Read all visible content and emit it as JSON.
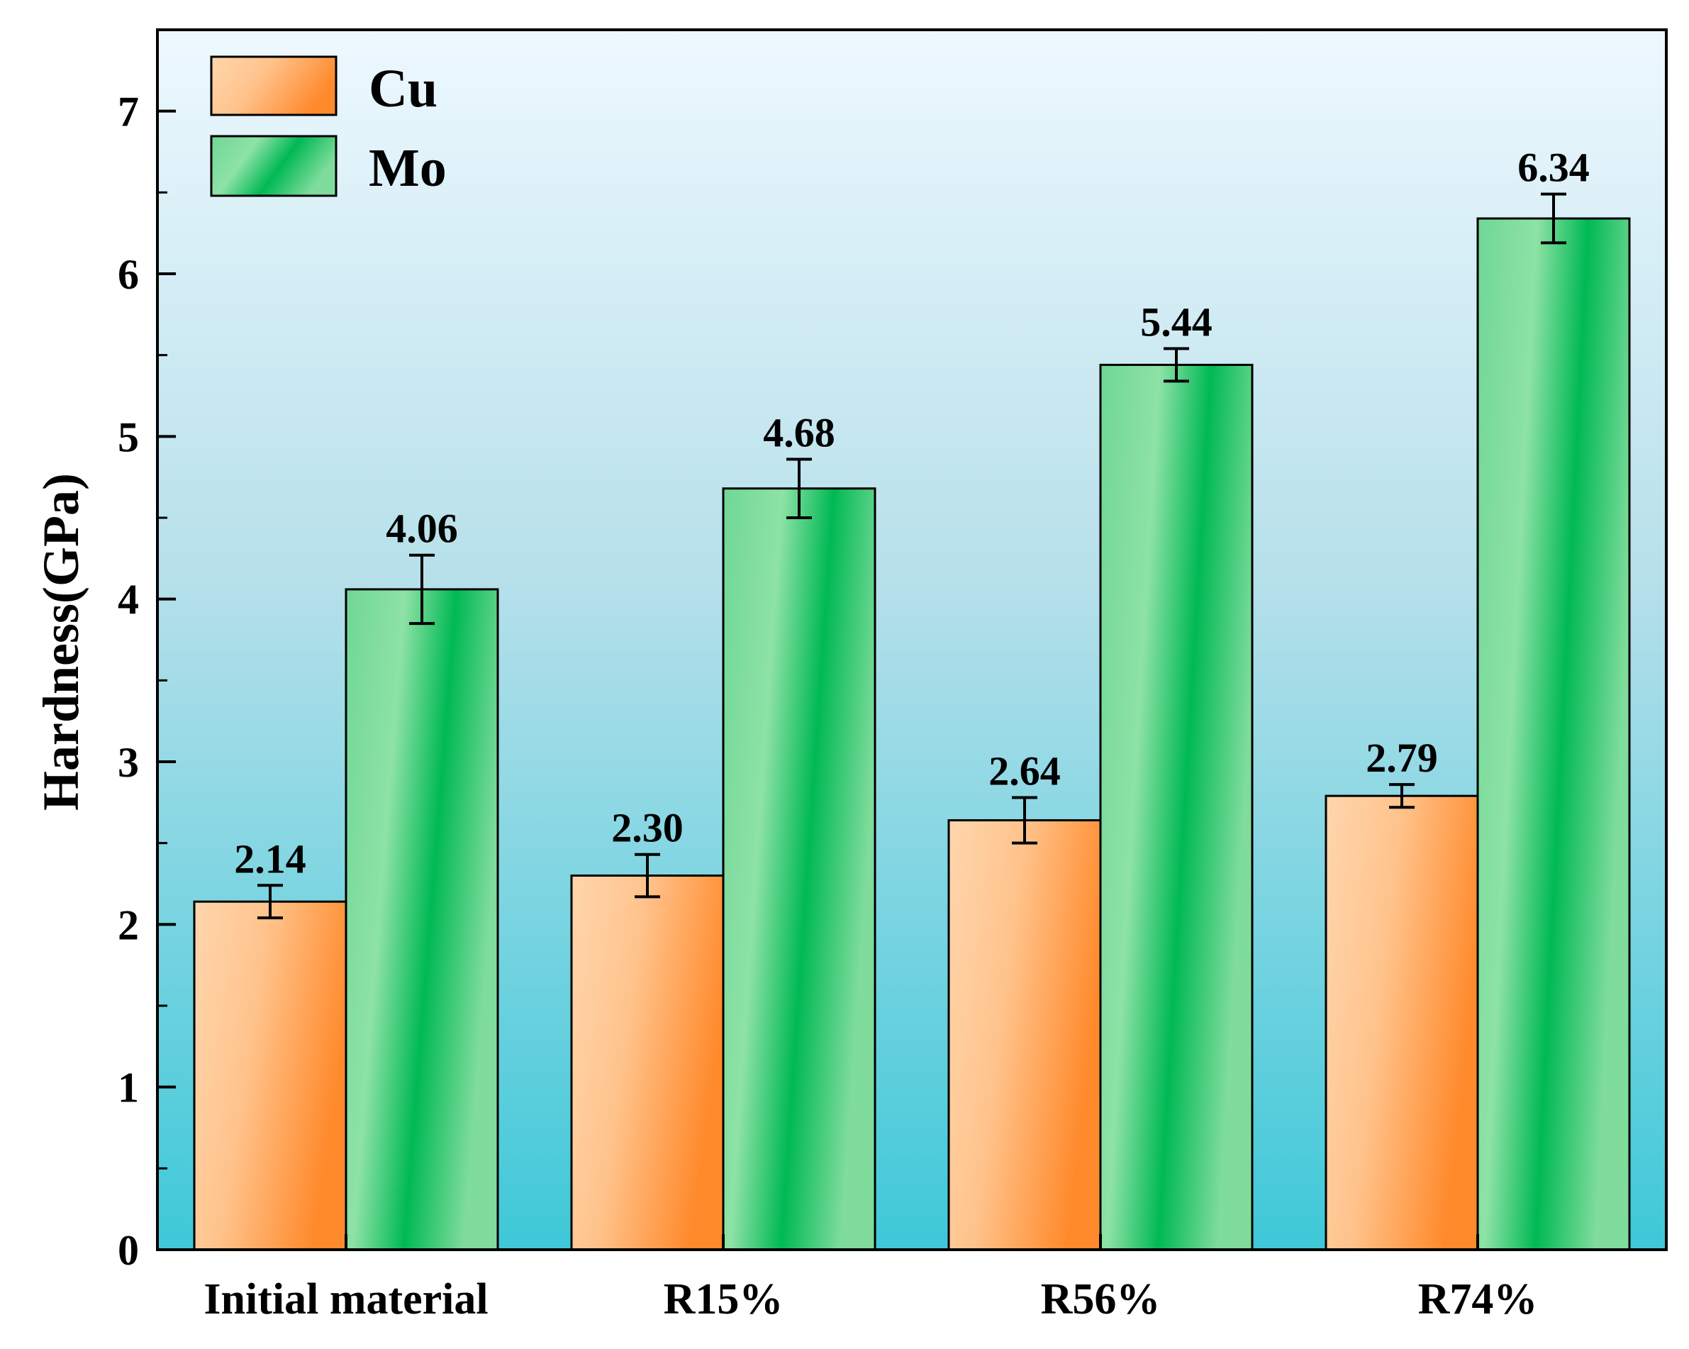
{
  "chart_data": {
    "type": "bar",
    "title": "",
    "xlabel": "",
    "ylabel": "Hardness(GPa)",
    "categories": [
      "Initial material",
      "R15%",
      "R56%",
      "R74%"
    ],
    "series": [
      {
        "name": "Cu",
        "color_light": "#ffd0a0",
        "color_dark": "#ff8c2e",
        "values": [
          2.14,
          2.3,
          2.64,
          2.79
        ],
        "errors": [
          0.1,
          0.13,
          0.14,
          0.07
        ],
        "value_labels": [
          "2.14",
          "2.30",
          "2.64",
          "2.79"
        ]
      },
      {
        "name": "Mo",
        "color_light": "#8ee0a4",
        "color_dark": "#00b954",
        "values": [
          4.06,
          4.68,
          5.44,
          6.34
        ],
        "errors": [
          0.21,
          0.18,
          0.1,
          0.15
        ],
        "value_labels": [
          "4.06",
          "4.68",
          "5.44",
          "6.34"
        ]
      }
    ],
    "ylim": [
      0,
      7.5
    ],
    "yticks": [
      0,
      1,
      2,
      3,
      4,
      5,
      6,
      7
    ],
    "ytick_labels": [
      "0",
      "1",
      "2",
      "3",
      "4",
      "5",
      "6",
      "7"
    ],
    "grid": false,
    "legend_position": "top-left",
    "background_gradient": [
      "#eef8ff",
      "#3ec8d8"
    ]
  }
}
